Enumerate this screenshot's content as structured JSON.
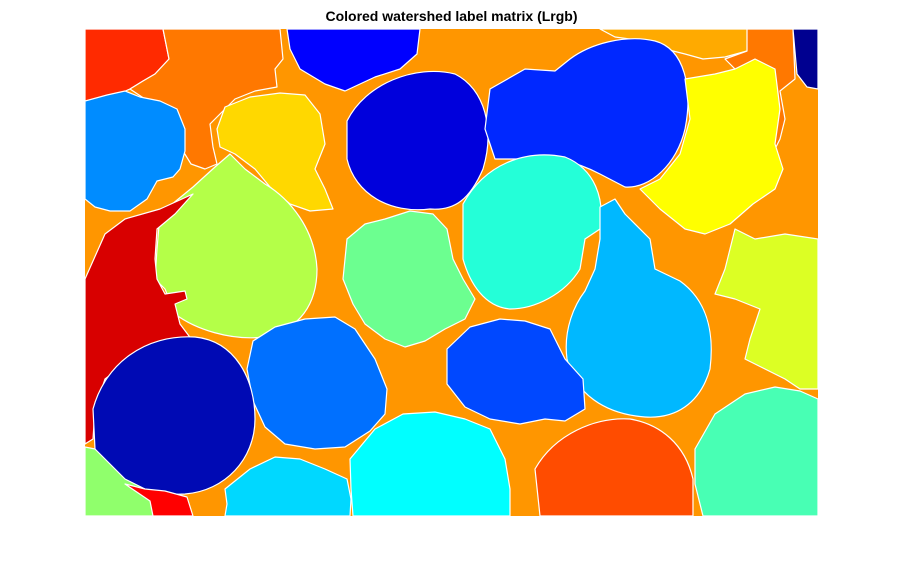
{
  "figure": {
    "title": "Colored watershed label matrix (Lrgb)"
  },
  "image": {
    "description": "Watershed segmentation label matrix rendered with jet colormap; white edges separate regions",
    "background_color": "#FF9600",
    "edge_color": "#FFFFFF",
    "region_colors": [
      "#FF2A00",
      "#FF7800",
      "#0000FF",
      "#FFAA00",
      "#000090",
      "#008CFF",
      "#FFD800",
      "#0000DC",
      "#0028FF",
      "#FFFF00",
      "#B4FF48",
      "#D80000",
      "#24FFD8",
      "#6CFF90",
      "#00B8FF",
      "#DCFF24",
      "#0070FF",
      "#000AB4",
      "#0048FF",
      "#00D8FF",
      "#00FFFF",
      "#FF4C00",
      "#48FFB4",
      "#90FF6C",
      "#FF0000"
    ]
  }
}
